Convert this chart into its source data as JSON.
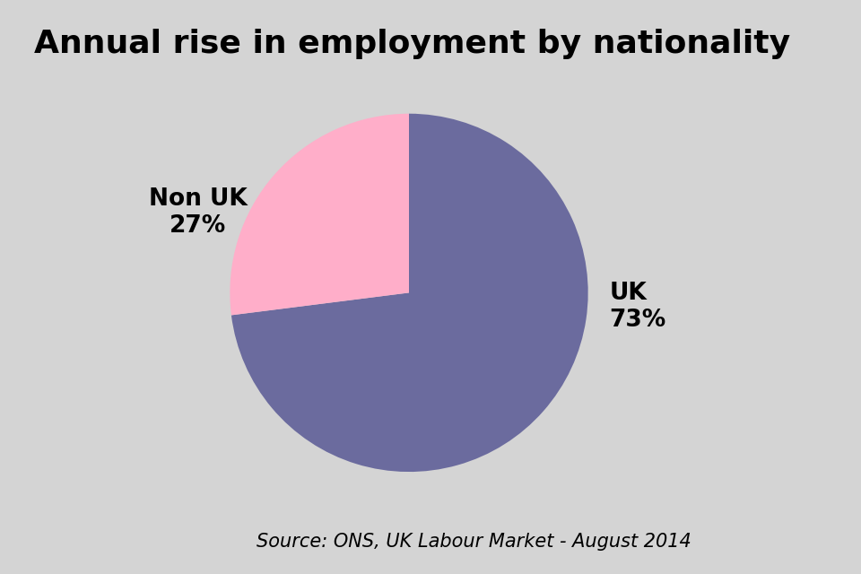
{
  "title": "Annual rise in employment by nationality",
  "slices": [
    73,
    27
  ],
  "colors": [
    "#6b6b9e",
    "#ffaec9"
  ],
  "source_text": "Source: ONS, UK Labour Market - August 2014",
  "background_color": "#d4d4d4",
  "title_fontsize": 26,
  "label_fontsize": 19,
  "source_fontsize": 15,
  "startangle": 90,
  "uk_label": "UK\n73%",
  "nonuk_label": "Non UK\n27%"
}
